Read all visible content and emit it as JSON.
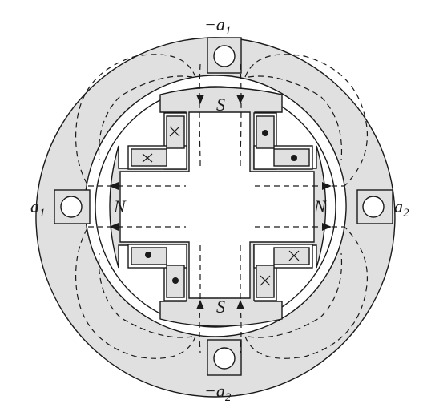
{
  "labels": {
    "top": "−a",
    "top_sub": "1",
    "bottom": "−a",
    "bottom_sub": "2",
    "left": "a",
    "left_sub": "1",
    "right": "a",
    "right_sub": "2",
    "pole_top": "S",
    "pole_bottom": "S",
    "pole_left": "N",
    "pole_right": "N"
  },
  "conductor_marks": {
    "cross_symbol": "×",
    "dot_symbol": "•"
  }
}
